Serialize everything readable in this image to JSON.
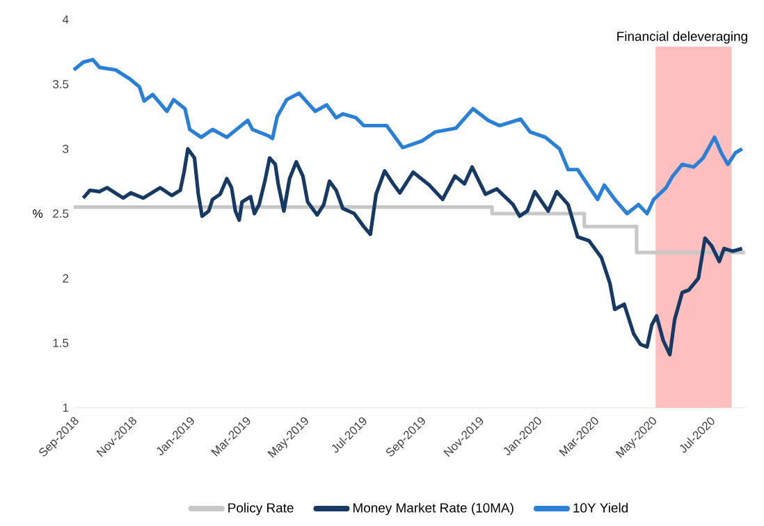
{
  "chart_data": {
    "type": "line",
    "ylabel": "%",
    "x": [
      "2018-09-01",
      "2019-11-15",
      "2020-02-20",
      "2020-04-15",
      "2020-08-07"
    ],
    "xlim": [
      "2018-09-01",
      "2020-08-08"
    ],
    "xticks": [
      {
        "value": "2018-09-01",
        "label": "Sep-2018"
      },
      {
        "value": "2018-11-01",
        "label": "Nov-2018"
      },
      {
        "value": "2019-01-01",
        "label": "Jan-2019"
      },
      {
        "value": "2019-03-01",
        "label": "Mar-2019"
      },
      {
        "value": "2019-05-01",
        "label": "May-2019"
      },
      {
        "value": "2019-07-01",
        "label": "Jul-2019"
      },
      {
        "value": "2019-09-01",
        "label": "Sep-2019"
      },
      {
        "value": "2019-11-01",
        "label": "Nov-2019"
      },
      {
        "value": "2020-01-01",
        "label": "Jan-2020"
      },
      {
        "value": "2020-03-01",
        "label": "Mar-2020"
      },
      {
        "value": "2020-05-01",
        "label": "May-2020"
      },
      {
        "value": "2020-07-01",
        "label": "Jul-2020"
      }
    ],
    "ylim": [
      1,
      4
    ],
    "yticks": [
      1,
      1.5,
      2,
      2.5,
      3,
      3.5,
      4
    ],
    "legend": "bottom",
    "grid": false,
    "bands": [
      {
        "axis": "x",
        "from": "2020-05-05",
        "to": "2020-07-24",
        "label": "Financial deleveraging",
        "color": "#ffbfbf"
      }
    ],
    "series": [
      {
        "name": "Policy Rate",
        "type": "step",
        "color": "#c8c8c8",
        "values": [
          2.55,
          2.5,
          2.4,
          2.2,
          2.2
        ]
      },
      {
        "name": "Money Market Rate (10MA)",
        "type": "line",
        "color": "#173a64",
        "x": [
          "2018-09-11",
          "2018-09-18",
          "2018-09-28",
          "2018-10-06",
          "2018-10-23",
          "2018-10-31",
          "2018-11-13",
          "2018-12-01",
          "2018-12-13",
          "2018-12-22",
          "2018-12-26",
          "2018-12-30",
          "2019-01-06",
          "2019-01-10",
          "2019-01-14",
          "2019-01-21",
          "2019-01-25",
          "2019-02-02",
          "2019-02-09",
          "2019-02-14",
          "2019-02-18",
          "2019-02-22",
          "2019-02-25",
          "2019-03-06",
          "2019-03-10",
          "2019-03-15",
          "2019-03-21",
          "2019-03-26",
          "2019-04-01",
          "2019-04-04",
          "2019-04-10",
          "2019-04-16",
          "2019-04-23",
          "2019-04-30",
          "2019-05-05",
          "2019-05-15",
          "2019-05-22",
          "2019-05-28",
          "2019-06-04",
          "2019-06-11",
          "2019-06-23",
          "2019-07-03",
          "2019-07-10",
          "2019-07-16",
          "2019-07-25",
          "2019-08-03",
          "2019-08-10",
          "2019-08-24",
          "2019-09-10",
          "2019-09-24",
          "2019-10-07",
          "2019-10-17",
          "2019-10-25",
          "2019-11-08",
          "2019-11-20",
          "2019-12-07",
          "2019-12-14",
          "2019-12-22",
          "2019-12-30",
          "2020-01-13",
          "2020-01-22",
          "2020-02-03",
          "2020-02-13",
          "2020-02-25",
          "2020-03-09",
          "2020-03-18",
          "2020-03-23",
          "2020-04-02",
          "2020-04-12",
          "2020-04-19",
          "2020-04-26",
          "2020-05-01",
          "2020-05-06",
          "2020-05-13",
          "2020-05-20",
          "2020-05-25",
          "2020-06-02",
          "2020-06-09",
          "2020-06-19",
          "2020-06-26",
          "2020-07-03",
          "2020-07-11",
          "2020-07-16",
          "2020-07-25",
          "2020-08-04"
        ],
        "values": [
          2.62,
          2.68,
          2.67,
          2.7,
          2.62,
          2.66,
          2.62,
          2.7,
          2.64,
          2.68,
          2.82,
          3.0,
          2.93,
          2.65,
          2.48,
          2.52,
          2.61,
          2.65,
          2.77,
          2.7,
          2.52,
          2.45,
          2.59,
          2.63,
          2.5,
          2.57,
          2.75,
          2.93,
          2.88,
          2.73,
          2.52,
          2.77,
          2.9,
          2.79,
          2.59,
          2.49,
          2.57,
          2.75,
          2.68,
          2.54,
          2.5,
          2.4,
          2.34,
          2.65,
          2.83,
          2.73,
          2.66,
          2.82,
          2.72,
          2.61,
          2.79,
          2.73,
          2.86,
          2.65,
          2.69,
          2.57,
          2.48,
          2.52,
          2.67,
          2.52,
          2.67,
          2.57,
          2.32,
          2.29,
          2.16,
          1.96,
          1.76,
          1.8,
          1.57,
          1.49,
          1.47,
          1.64,
          1.71,
          1.52,
          1.41,
          1.68,
          1.89,
          1.91,
          2.0,
          2.31,
          2.25,
          2.13,
          2.23,
          2.21,
          2.23
        ]
      },
      {
        "name": "10Y Yield",
        "type": "line",
        "color": "#2a80d6",
        "x": [
          "2018-09-01",
          "2018-09-11",
          "2018-09-21",
          "2018-09-28",
          "2018-10-15",
          "2018-10-30",
          "2018-11-09",
          "2018-11-14",
          "2018-11-23",
          "2018-12-08",
          "2018-12-15",
          "2018-12-27",
          "2019-01-01",
          "2019-01-13",
          "2019-01-25",
          "2019-02-09",
          "2019-03-03",
          "2019-03-08",
          "2019-03-25",
          "2019-03-29",
          "2019-04-03",
          "2019-04-13",
          "2019-04-26",
          "2019-05-13",
          "2019-05-25",
          "2019-06-04",
          "2019-06-11",
          "2019-06-25",
          "2019-07-03",
          "2019-07-27",
          "2019-08-03",
          "2019-08-13",
          "2019-09-02",
          "2019-09-16",
          "2019-10-08",
          "2019-10-26",
          "2019-11-11",
          "2019-11-23",
          "2019-12-15",
          "2019-12-25",
          "2020-01-10",
          "2020-01-25",
          "2020-02-03",
          "2020-02-13",
          "2020-02-23",
          "2020-03-05",
          "2020-03-12",
          "2020-03-23",
          "2020-04-05",
          "2020-04-17",
          "2020-04-26",
          "2020-05-03",
          "2020-05-16",
          "2020-05-23",
          "2020-06-02",
          "2020-06-14",
          "2020-06-24",
          "2020-07-06",
          "2020-07-13",
          "2020-07-20",
          "2020-07-28",
          "2020-08-04"
        ],
        "values": [
          3.61,
          3.67,
          3.69,
          3.63,
          3.61,
          3.54,
          3.48,
          3.37,
          3.42,
          3.29,
          3.38,
          3.31,
          3.15,
          3.09,
          3.15,
          3.09,
          3.22,
          3.15,
          3.1,
          3.08,
          3.25,
          3.38,
          3.43,
          3.29,
          3.34,
          3.24,
          3.27,
          3.24,
          3.18,
          3.18,
          3.11,
          3.01,
          3.06,
          3.13,
          3.16,
          3.31,
          3.22,
          3.18,
          3.23,
          3.13,
          3.09,
          3.0,
          2.84,
          2.84,
          2.73,
          2.61,
          2.72,
          2.61,
          2.5,
          2.57,
          2.5,
          2.61,
          2.7,
          2.79,
          2.88,
          2.86,
          2.93,
          3.09,
          2.97,
          2.88,
          2.97,
          3.0
        ]
      }
    ]
  }
}
